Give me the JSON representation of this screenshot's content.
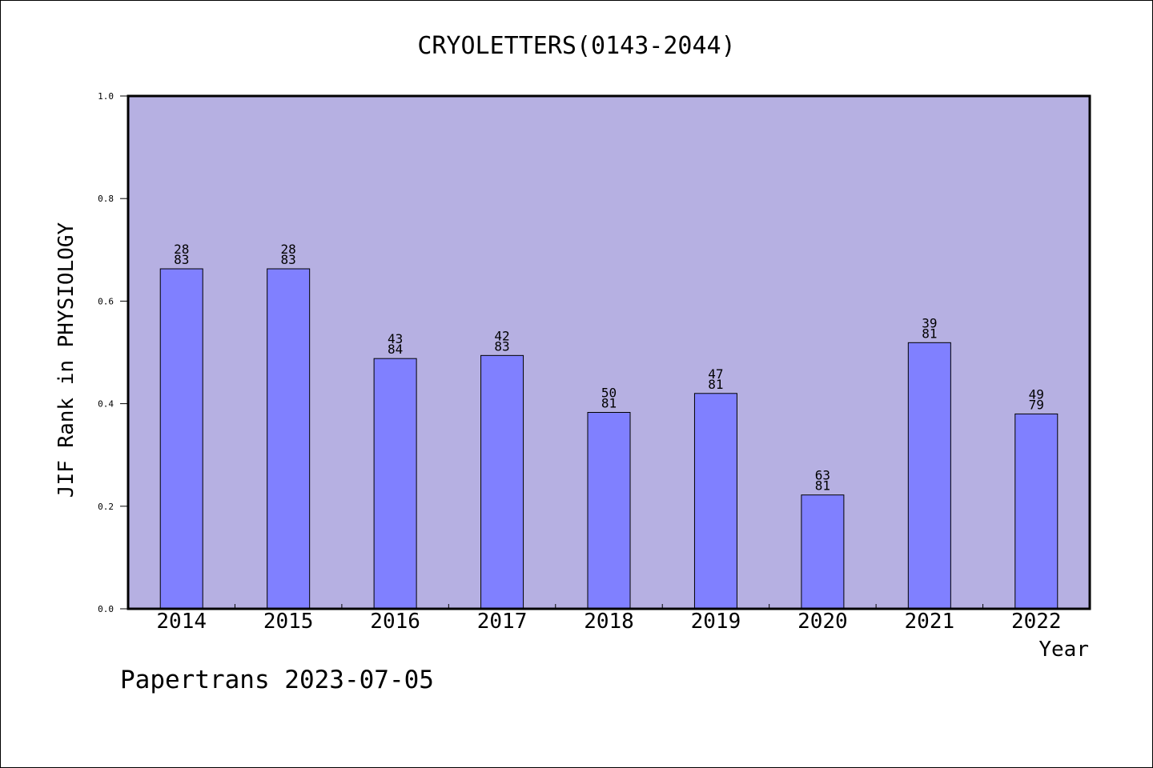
{
  "chart_data": {
    "type": "bar",
    "title": "CRYOLETTERS(0143-2044)",
    "xlabel": "Year",
    "ylabel": "JIF Rank in PHYSIOLOGY",
    "ylim": [
      0,
      1.0
    ],
    "yticks": [
      "0.0",
      "0.2",
      "0.4",
      "0.6",
      "0.8",
      "1.0"
    ],
    "categories": [
      "2014",
      "2015",
      "2016",
      "2017",
      "2018",
      "2019",
      "2020",
      "2021",
      "2022"
    ],
    "values": [
      0.663,
      0.663,
      0.488,
      0.494,
      0.383,
      0.42,
      0.222,
      0.519,
      0.38
    ],
    "rank_labels": [
      {
        "rank": "28",
        "total": "83"
      },
      {
        "rank": "28",
        "total": "83"
      },
      {
        "rank": "43",
        "total": "84"
      },
      {
        "rank": "42",
        "total": "83"
      },
      {
        "rank": "50",
        "total": "81"
      },
      {
        "rank": "47",
        "total": "81"
      },
      {
        "rank": "63",
        "total": "81"
      },
      {
        "rank": "39",
        "total": "81"
      },
      {
        "rank": "49",
        "total": "79"
      }
    ],
    "grid": false,
    "colors": {
      "plot_background": "#b6b0e2",
      "bar_fill": "#8080ff",
      "bar_stroke": "#000000"
    }
  },
  "footer": {
    "text": "Papertrans 2023-07-05"
  }
}
